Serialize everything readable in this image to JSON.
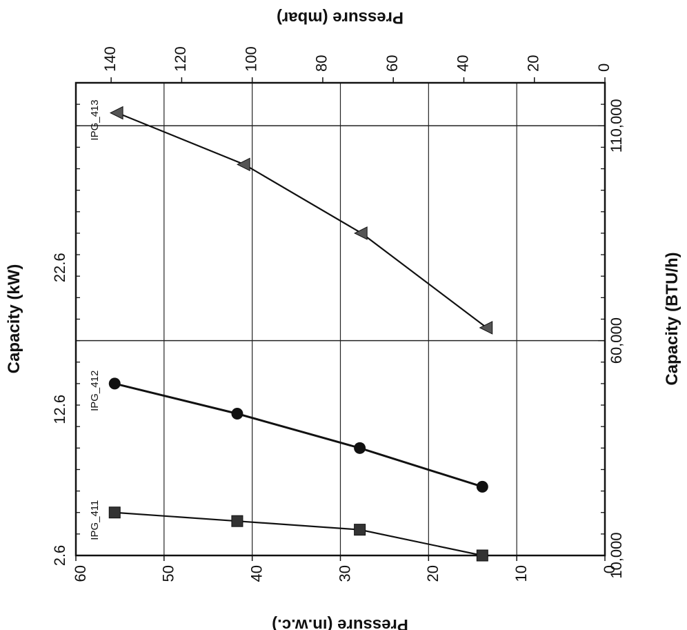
{
  "chart_data": {
    "type": "line",
    "orientation": "rotated-90-clockwise",
    "xlabel": "Capacity (BTU/h)",
    "x2label": "Capacity (kW)",
    "ylabel": "Pressure (in.w.c.)",
    "y2label": "Pressure (mbar)",
    "xlim": [
      10000,
      120000
    ],
    "ylim": [
      0,
      60
    ],
    "y2lim": [
      0,
      150
    ],
    "x_ticks": [
      {
        "value": 10000,
        "label": "10,000"
      },
      {
        "value": 60000,
        "label": "60,000"
      },
      {
        "value": 110000,
        "label": "110,000"
      }
    ],
    "x2_ticks": [
      {
        "value": 10000,
        "label": "2.6"
      },
      {
        "value": 44000,
        "label": "12.6"
      },
      {
        "value": 77000,
        "label": "22.6"
      }
    ],
    "y_ticks": [
      0,
      10,
      20,
      30,
      40,
      50,
      60
    ],
    "y2_ticks": [
      0,
      20,
      40,
      60,
      80,
      100,
      120,
      140
    ],
    "grid": true,
    "grid_x_at": [
      60000,
      110000
    ],
    "series": [
      {
        "name": "IPG_411",
        "marker": "square",
        "color": "#333333",
        "x": [
          10000,
          16000,
          18000,
          20000
        ],
        "y": [
          13.9,
          27.8,
          41.7,
          55.6
        ]
      },
      {
        "name": "IPG_412",
        "marker": "circle",
        "color": "#111111",
        "x": [
          26000,
          35000,
          43000,
          50000
        ],
        "y": [
          13.9,
          27.8,
          41.7,
          55.6
        ]
      },
      {
        "name": "IPG_413",
        "marker": "triangle",
        "color": "#555555",
        "x": [
          63000,
          85000,
          101000,
          113000
        ],
        "y": [
          13.4,
          27.6,
          40.9,
          55.3
        ]
      }
    ]
  }
}
